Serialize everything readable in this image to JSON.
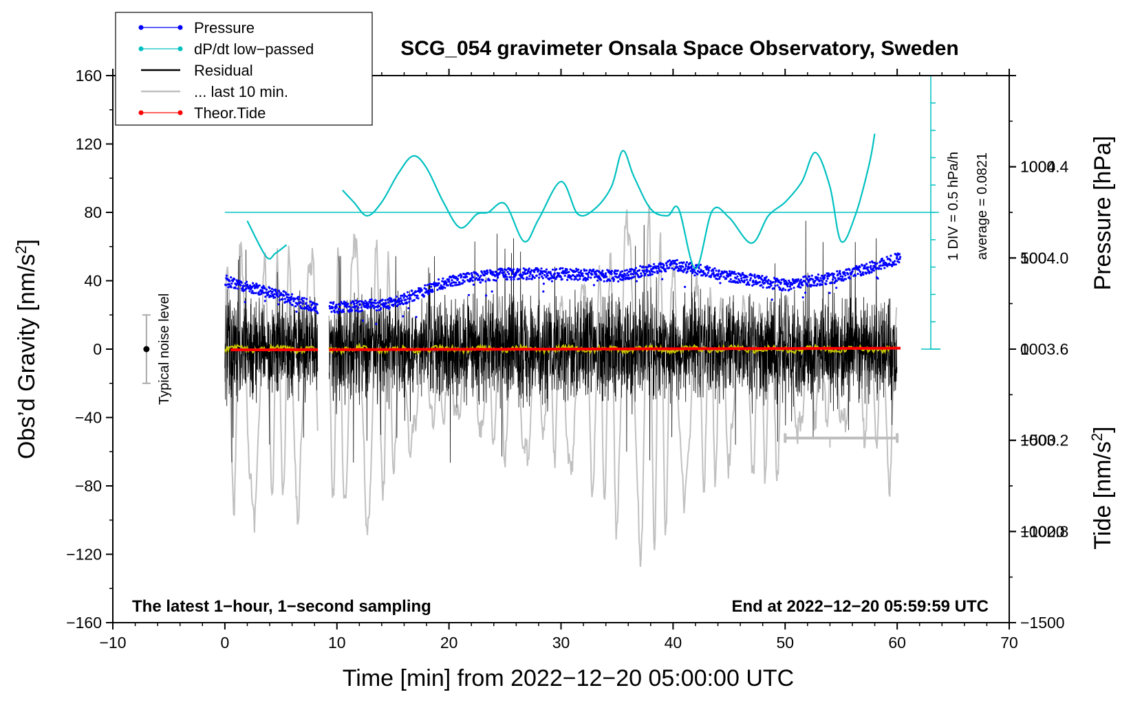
{
  "chart_data": {
    "type": "line",
    "title": "SCG_054 gravimeter Onsala Space Observatory, Sweden",
    "xlabel": "Time [min] from 2022−12−20 05:00:00 UTC",
    "ylabel": "Obs’d Gravity [nm/s²]",
    "ylabel_main": "Obs’d Gravity [nm/s",
    "ylabel_sup": "2",
    "ylabel_end": "]",
    "xlim": [
      -10,
      70
    ],
    "ylim": [
      -160,
      160
    ],
    "x_ticks": [
      -10,
      0,
      10,
      20,
      30,
      40,
      50,
      60,
      70
    ],
    "x_tick_labels": [
      "−10",
      "0",
      "10",
      "20",
      "30",
      "40",
      "50",
      "60",
      "70"
    ],
    "y_ticks": [
      -160,
      -120,
      -80,
      -40,
      0,
      40,
      80,
      120,
      160
    ],
    "y_tick_labels": [
      "−160",
      "−120",
      "−80",
      "−40",
      "0",
      "40",
      "80",
      "120",
      "160"
    ],
    "pressure_axis": {
      "label": "Pressure [hPa]",
      "range": [
        1002.4,
        1004.8
      ],
      "ticks": [
        1002.8,
        1003.2,
        1003.6,
        1004.0,
        1004.4
      ],
      "tick_labels": [
        "1002.8",
        "1003.2",
        "1003.6",
        "1004.0",
        "1004.4"
      ]
    },
    "tide_axis": {
      "label_main": "Tide [nm/s",
      "label_sup": "2",
      "label_end": "]",
      "range": [
        -1500,
        1500
      ],
      "ticks": [
        -1500,
        -1000,
        -500,
        0,
        500,
        1000
      ],
      "tick_labels": [
        "−1500",
        "−1000",
        "−500",
        "0",
        "500",
        "1000"
      ]
    },
    "dpdt_scale": {
      "label1": "1 DIV = 0.5 hPa/h",
      "label2": "average = 0.0821",
      "x": 63,
      "baseline_gravity": 80,
      "top_gravity": 160,
      "bottom_gravity": 0,
      "divisions": 10
    },
    "noise_marker": {
      "label": "Typical noise level",
      "x": -7,
      "center": 0,
      "half_width": 20
    },
    "scale_bar": {
      "x_start": 50,
      "x_end": 60,
      "y": -52
    },
    "gap": {
      "start": 8.3,
      "end": 9.3
    },
    "series": [
      {
        "name": "Pressure",
        "color": "#0000ff",
        "unit": "hPa",
        "x": [
          0,
          4,
          8.3,
          9.3,
          15,
          20,
          25,
          30,
          35,
          40,
          45,
          50,
          55,
          60.3
        ],
        "values": [
          1003.9,
          1003.85,
          1003.78,
          1003.78,
          1003.8,
          1003.9,
          1003.93,
          1003.93,
          1003.92,
          1003.97,
          1003.92,
          1003.88,
          1003.92,
          1004.0
        ]
      },
      {
        "name": "dP/dt low−passed",
        "color": "#00c0c0",
        "x": [
          2,
          3.7,
          4.5,
          5.5,
          10.5,
          11.5,
          12.7,
          14,
          15.5,
          16.8,
          18,
          19.5,
          21,
          22.5,
          23.5,
          25,
          26.7,
          28,
          30,
          31.5,
          33,
          34.5,
          35.5,
          36.5,
          38,
          39.5,
          40.5,
          42,
          43.5,
          45,
          47,
          48.5,
          50,
          51.5,
          52.7,
          54,
          55,
          56.3,
          57.5,
          58
        ],
        "values": [
          75,
          54,
          56,
          61,
          93,
          86,
          78,
          86,
          103,
          113,
          106,
          86,
          71,
          79,
          80,
          85,
          63,
          76,
          98,
          79,
          82,
          95,
          116,
          101,
          82,
          78,
          82,
          47,
          81,
          77,
          62,
          78,
          86,
          98,
          115,
          95,
          63,
          79,
          108,
          126
        ]
      },
      {
        "name": "Residual",
        "color": "#000000",
        "amplitude": 30,
        "x_range": [
          [
            0,
            8.3
          ],
          [
            9.3,
            60
          ]
        ]
      },
      {
        "name": "... last 10 min.",
        "color": "#c0c0c0",
        "unit": "nm/s² (tide axis)",
        "x_range": [
          [
            0,
            8.3
          ],
          [
            9.3,
            60
          ]
        ]
      },
      {
        "name": "Theor.Tide",
        "color": "#ff0000",
        "unit": "nm/s²",
        "x": [
          0.5,
          8.3,
          9.3,
          60.3
        ],
        "values": [
          -4,
          -3,
          -3,
          5
        ]
      }
    ],
    "legend": [
      {
        "label": "Pressure",
        "color": "#0000ff",
        "style": "line-dot"
      },
      {
        "label": "dP/dt low−passed",
        "color": "#00c0c0",
        "style": "line-dot"
      },
      {
        "label": "Residual",
        "color": "#000000",
        "style": "line"
      },
      {
        "label": "... last 10 min.",
        "color": "#c0c0c0",
        "style": "line"
      },
      {
        "label": "Theor.Tide",
        "color": "#ff0000",
        "style": "line-dot"
      }
    ],
    "legend_position": "top-left",
    "annotations": {
      "left": "The latest 1−hour, 1−second sampling",
      "right": "End at 2022−12−20 05:59:59 UTC"
    }
  }
}
